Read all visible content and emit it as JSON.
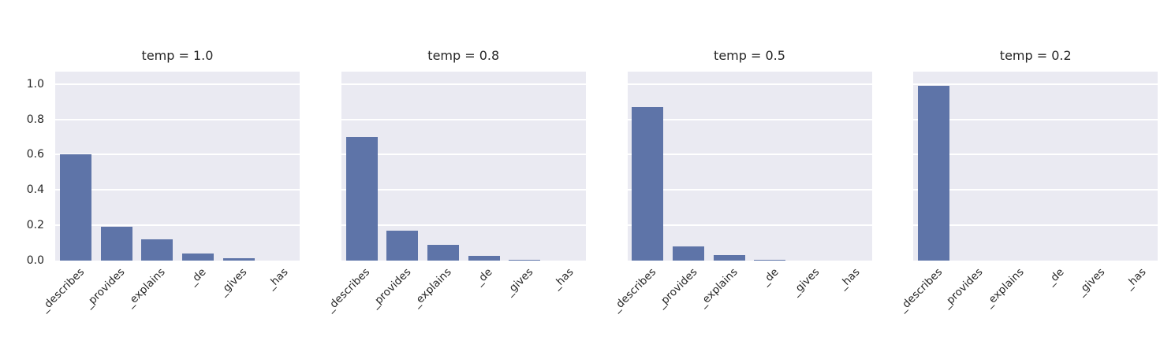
{
  "chart_data": {
    "type": "bar",
    "title": "",
    "xlabel": "",
    "ylabel": "",
    "categories": [
      "_describes",
      "_provides",
      "_explains",
      "_de",
      "_gives",
      "_has"
    ],
    "facets": [
      {
        "title": "temp = 1.0",
        "values": [
          0.6,
          0.19,
          0.12,
          0.04,
          0.012,
          0.0
        ]
      },
      {
        "title": "temp = 0.8",
        "values": [
          0.7,
          0.17,
          0.09,
          0.025,
          0.005,
          0.0
        ]
      },
      {
        "title": "temp = 0.5",
        "values": [
          0.87,
          0.08,
          0.03,
          0.005,
          0.0,
          0.0
        ]
      },
      {
        "title": "temp = 0.2",
        "values": [
          0.99,
          0.0,
          0.0,
          0.0,
          0.0,
          0.0
        ]
      }
    ],
    "yticks": [
      {
        "label": "1.0",
        "value": 1.0
      },
      {
        "label": "0.8",
        "value": 0.8
      },
      {
        "label": "0.6",
        "value": 0.6
      },
      {
        "label": "0.4",
        "value": 0.4
      },
      {
        "label": "0.2",
        "value": 0.2
      },
      {
        "label": "0.0",
        "value": 0.0
      }
    ],
    "ylim": [
      0,
      1.07
    ],
    "grid": true,
    "legend": "none",
    "colors": {
      "bar": "#5e74a8",
      "plot_background": "#eaeaf2",
      "gridline": "#ffffff",
      "text": "#262626",
      "figure_background": "#ffffff"
    }
  }
}
